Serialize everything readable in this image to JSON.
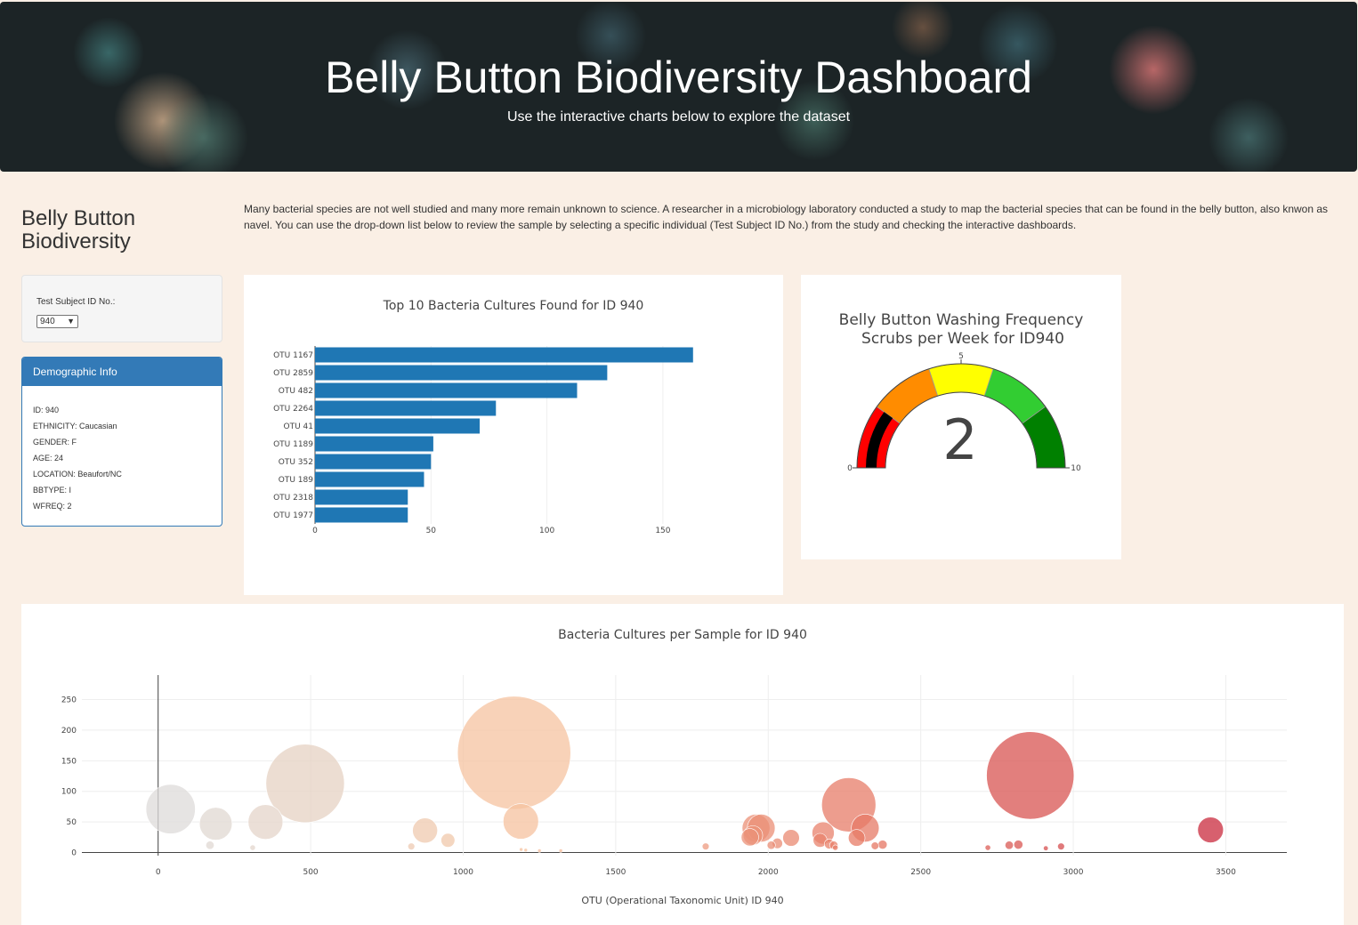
{
  "header": {
    "title": "Belly Button Biodiversity Dashboard",
    "subtitle": "Use the interactive charts below to explore the dataset"
  },
  "sidebar": {
    "title": "Belly Button Biodiversity",
    "select_label": "Test Subject ID No.:",
    "select_value": "940",
    "demographic_title": "Demographic Info",
    "demographics": [
      "ID: 940",
      "ETHNICITY: Caucasian",
      "GENDER: F",
      "AGE: 24",
      "LOCATION: Beaufort/NC",
      "BBTYPE: I",
      "WFREQ: 2"
    ]
  },
  "intro_text": "Many bacterial species are not well studied and many more remain unknown to science. A researcher in a microbiology laboratory conducted a study to map the bacterial species that can be found in the belly button, also knwon as navel. You can use the drop-down list below to review the sample by selecting a specific individual (Test Subject ID No.) from the study and checking the interactive dashboards.",
  "colors": {
    "bar": "#1f77b4",
    "panel": "#337ab7",
    "background": "#faefe5"
  },
  "chart_data": [
    {
      "type": "bar",
      "orientation": "horizontal",
      "title": "Top 10 Bacteria Cultures Found for ID 940",
      "categories": [
        "OTU 1167",
        "OTU 2859",
        "OTU 482",
        "OTU 2264",
        "OTU 41",
        "OTU 1189",
        "OTU 352",
        "OTU 189",
        "OTU 2318",
        "OTU 1977"
      ],
      "values": [
        163,
        126,
        113,
        78,
        71,
        51,
        50,
        47,
        40,
        40
      ],
      "xlim": [
        0,
        165
      ],
      "xticks": [
        0,
        50,
        100,
        150
      ]
    },
    {
      "type": "gauge",
      "title_lines": [
        "Belly Button Washing Frequency",
        "Scrubs per Week for ID940"
      ],
      "value": 2,
      "range": [
        0,
        10
      ],
      "tick_labels": [
        "0",
        "5",
        "10"
      ],
      "steps": [
        {
          "range": [
            0,
            2
          ],
          "color": "#ff0000"
        },
        {
          "range": [
            2,
            4
          ],
          "color": "#ff8c00"
        },
        {
          "range": [
            4,
            6
          ],
          "color": "#ffff00"
        },
        {
          "range": [
            6,
            8
          ],
          "color": "#32cd32"
        },
        {
          "range": [
            8,
            10
          ],
          "color": "#008000"
        }
      ],
      "bar_color": "#000000"
    },
    {
      "type": "scatter",
      "title": "Bacteria Cultures per Sample for ID 940",
      "xlabel": "OTU (Operational Taxonomic Unit) ID 940",
      "xlim": [
        -250,
        3700
      ],
      "ylim": [
        -5,
        290
      ],
      "xticks": [
        0,
        500,
        1000,
        1500,
        2000,
        2500,
        3000,
        3500
      ],
      "yticks": [
        0,
        50,
        100,
        150,
        200,
        250
      ],
      "colorscale": "Reds-ish by OTU id",
      "points": [
        {
          "x": 41,
          "y": 71
        },
        {
          "x": 189,
          "y": 47
        },
        {
          "x": 352,
          "y": 50
        },
        {
          "x": 482,
          "y": 113
        },
        {
          "x": 170,
          "y": 12
        },
        {
          "x": 310,
          "y": 8
        },
        {
          "x": 875,
          "y": 36
        },
        {
          "x": 950,
          "y": 20
        },
        {
          "x": 830,
          "y": 10
        },
        {
          "x": 1167,
          "y": 163
        },
        {
          "x": 1189,
          "y": 51
        },
        {
          "x": 1190,
          "y": 5
        },
        {
          "x": 1205,
          "y": 4
        },
        {
          "x": 1250,
          "y": 3
        },
        {
          "x": 1320,
          "y": 3
        },
        {
          "x": 1795,
          "y": 10
        },
        {
          "x": 1960,
          "y": 40
        },
        {
          "x": 1977,
          "y": 40
        },
        {
          "x": 1950,
          "y": 28
        },
        {
          "x": 1940,
          "y": 25
        },
        {
          "x": 2010,
          "y": 12
        },
        {
          "x": 2030,
          "y": 15
        },
        {
          "x": 2075,
          "y": 24
        },
        {
          "x": 2180,
          "y": 32
        },
        {
          "x": 2170,
          "y": 20
        },
        {
          "x": 2200,
          "y": 14
        },
        {
          "x": 2215,
          "y": 12
        },
        {
          "x": 2264,
          "y": 78
        },
        {
          "x": 2318,
          "y": 40
        },
        {
          "x": 2290,
          "y": 24
        },
        {
          "x": 2220,
          "y": 8
        },
        {
          "x": 2350,
          "y": 11
        },
        {
          "x": 2375,
          "y": 13
        },
        {
          "x": 2720,
          "y": 8
        },
        {
          "x": 2790,
          "y": 12
        },
        {
          "x": 2820,
          "y": 13
        },
        {
          "x": 2859,
          "y": 126
        },
        {
          "x": 2910,
          "y": 7
        },
        {
          "x": 2960,
          "y": 10
        },
        {
          "x": 3450,
          "y": 37
        }
      ]
    }
  ]
}
